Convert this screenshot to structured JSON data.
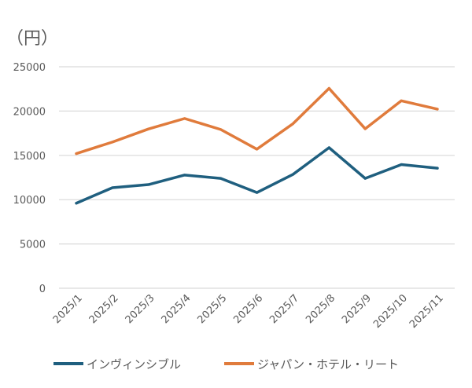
{
  "chart_data": {
    "type": "line",
    "unit_label": "（円）",
    "categories": [
      "2025/1",
      "2025/2",
      "2025/3",
      "2025/4",
      "2025/5",
      "2025/6",
      "2025/7",
      "2025/8",
      "2025/9",
      "2025/10",
      "2025/11"
    ],
    "ylim": [
      0,
      25000
    ],
    "yticks": [
      "0",
      "5000",
      "10000",
      "15000",
      "20000",
      "25000"
    ],
    "grid": true,
    "legend": "bottom",
    "series": [
      {
        "name": "インヴィンシブル",
        "color": "#1f5f7f",
        "values": [
          9600,
          11350,
          11700,
          12780,
          12400,
          10800,
          12850,
          15870,
          12400,
          13960,
          13550
        ]
      },
      {
        "name": "ジャパン・ホテル・リート",
        "color": "#e07b3c",
        "values": [
          15200,
          16500,
          17980,
          19160,
          17920,
          15700,
          18570,
          22560,
          18000,
          21160,
          20220
        ]
      }
    ]
  }
}
